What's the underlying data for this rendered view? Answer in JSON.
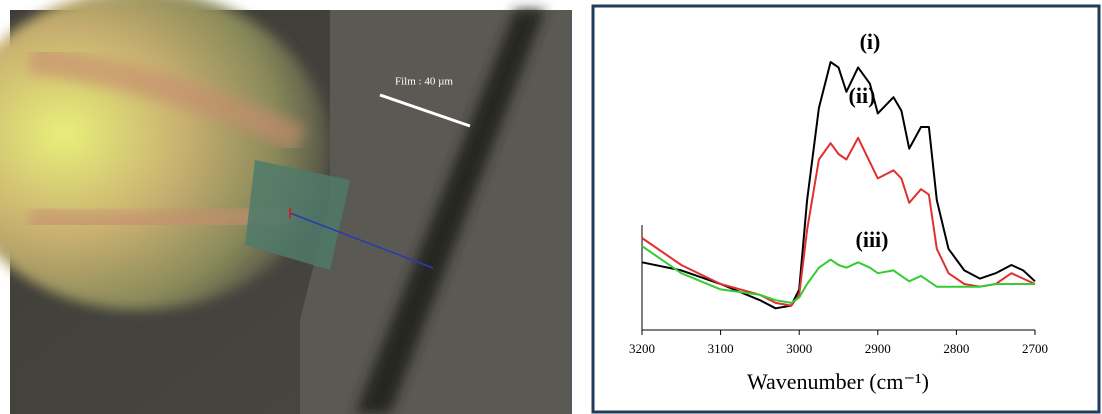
{
  "photo": {
    "scale_label": "Film : 40 µm"
  },
  "chart_data": {
    "type": "line",
    "x": [
      3200,
      3150,
      3100,
      3050,
      3030,
      3010,
      3000,
      2990,
      2975,
      2960,
      2950,
      2940,
      2925,
      2910,
      2900,
      2880,
      2870,
      2860,
      2845,
      2835,
      2825,
      2810,
      2790,
      2770,
      2750,
      2730,
      2715,
      2700
    ],
    "series": [
      {
        "name": "(i)",
        "color": "#000000",
        "values": [
          25,
          22,
          17,
          11,
          8,
          9,
          15,
          48,
          82,
          99,
          97,
          88,
          97,
          91,
          80,
          86,
          81,
          67,
          75,
          75,
          48,
          30,
          22,
          19,
          21,
          24,
          22,
          18
        ]
      },
      {
        "name": "(ii)",
        "color": "#e03030",
        "values": [
          34,
          24,
          17,
          13,
          10,
          9,
          13,
          37,
          63,
          69,
          65,
          63,
          71,
          62,
          56,
          59,
          56,
          47,
          52,
          50,
          30,
          21,
          17,
          16,
          17,
          21,
          19,
          17
        ]
      },
      {
        "name": "(iii)",
        "color": "#33cc33",
        "values": [
          31,
          21,
          15,
          13,
          11,
          10,
          12,
          17,
          23,
          26,
          24,
          23,
          25,
          23,
          21,
          22,
          20,
          18,
          20,
          18,
          16,
          16,
          16,
          16,
          17,
          17,
          17,
          17
        ]
      }
    ],
    "xlim": [
      3200,
      2700
    ],
    "xticks": [
      3200,
      3100,
      3000,
      2900,
      2800,
      2700
    ],
    "xlabel": "Wavenumber (cm⁻¹)"
  }
}
